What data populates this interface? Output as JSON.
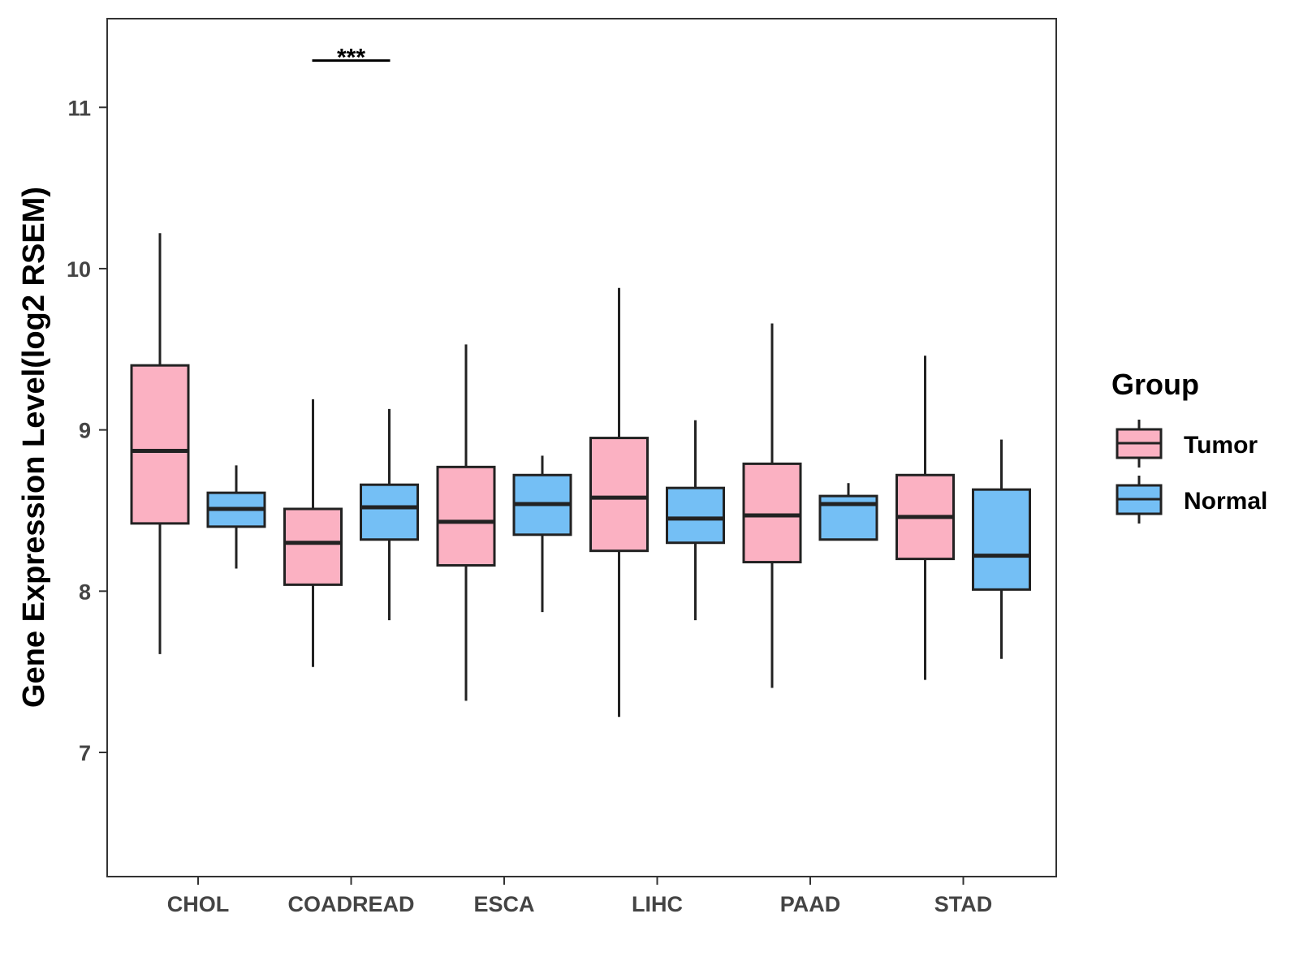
{
  "chart_data": {
    "type": "boxplot",
    "title": "",
    "xlabel": "",
    "ylabel": "Gene Expression Level(log2 RSEM)",
    "ylim": [
      6.23,
      11.55
    ],
    "yticks": [
      7,
      8,
      9,
      10,
      11
    ],
    "categories": [
      "CHOL",
      "COADREAD",
      "ESCA",
      "LIHC",
      "PAAD",
      "STAD"
    ],
    "legend": {
      "title": "Group",
      "position": "right"
    },
    "series": [
      {
        "name": "Tumor",
        "color": "#FBB1C2",
        "boxes": [
          {
            "min": 7.61,
            "q1": 8.42,
            "median": 8.87,
            "q3": 9.4,
            "max": 10.22
          },
          {
            "min": 7.53,
            "q1": 8.04,
            "median": 8.3,
            "q3": 8.51,
            "max": 9.19
          },
          {
            "min": 7.32,
            "q1": 8.16,
            "median": 8.43,
            "q3": 8.77,
            "max": 9.53
          },
          {
            "min": 7.22,
            "q1": 8.25,
            "median": 8.58,
            "q3": 8.95,
            "max": 9.88
          },
          {
            "min": 7.4,
            "q1": 8.18,
            "median": 8.47,
            "q3": 8.79,
            "max": 9.66
          },
          {
            "min": 7.45,
            "q1": 8.2,
            "median": 8.46,
            "q3": 8.72,
            "max": 9.46
          }
        ]
      },
      {
        "name": "Normal",
        "color": "#74BFF5",
        "boxes": [
          {
            "min": 8.14,
            "q1": 8.4,
            "median": 8.51,
            "q3": 8.61,
            "max": 8.78
          },
          {
            "min": 7.82,
            "q1": 8.32,
            "median": 8.52,
            "q3": 8.66,
            "max": 9.13
          },
          {
            "min": 7.87,
            "q1": 8.35,
            "median": 8.54,
            "q3": 8.72,
            "max": 8.84
          },
          {
            "min": 7.82,
            "q1": 8.3,
            "median": 8.45,
            "q3": 8.64,
            "max": 9.06
          },
          {
            "min": 8.32,
            "q1": 8.32,
            "median": 8.54,
            "q3": 8.59,
            "max": 8.67
          },
          {
            "min": 7.58,
            "q1": 8.01,
            "median": 8.22,
            "q3": 8.63,
            "max": 8.94
          }
        ]
      }
    ],
    "annotations": [
      {
        "category": "COADREAD",
        "label": "***",
        "y": 11.29
      }
    ]
  }
}
